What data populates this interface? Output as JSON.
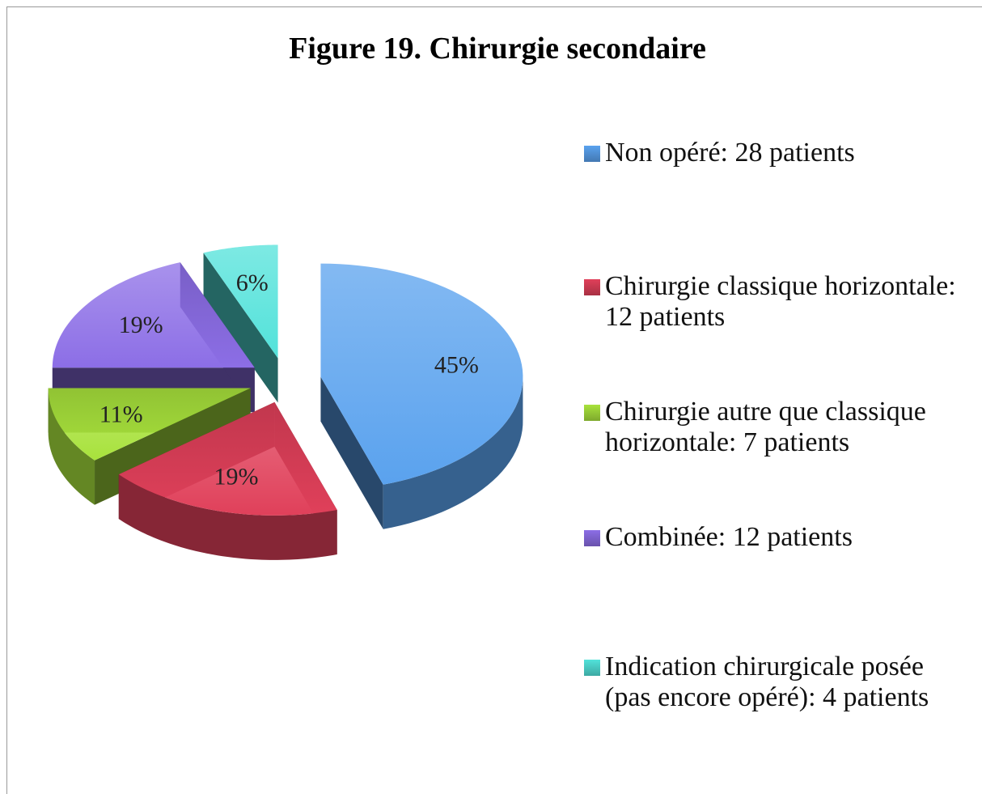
{
  "chart_data": {
    "type": "pie",
    "title": "Figure 19. Chirurgie secondaire",
    "categories": [
      "Non opéré: 28 patients",
      "Chirurgie classique horizontale: 12 patients",
      "Chirurgie autre que classique horizontale: 7 patients",
      "Combinée: 12 patients",
      "Indication chirurgicale posée (pas encore opéré): 4 patients"
    ],
    "values": [
      45,
      19,
      11,
      19,
      6
    ],
    "value_labels": [
      "45%",
      "19%",
      "11%",
      "19%",
      "6%"
    ],
    "colors": [
      "#5aa2ee",
      "#e0405a",
      "#a8e23c",
      "#8c6ee6",
      "#52e2da"
    ],
    "legend": "right"
  }
}
